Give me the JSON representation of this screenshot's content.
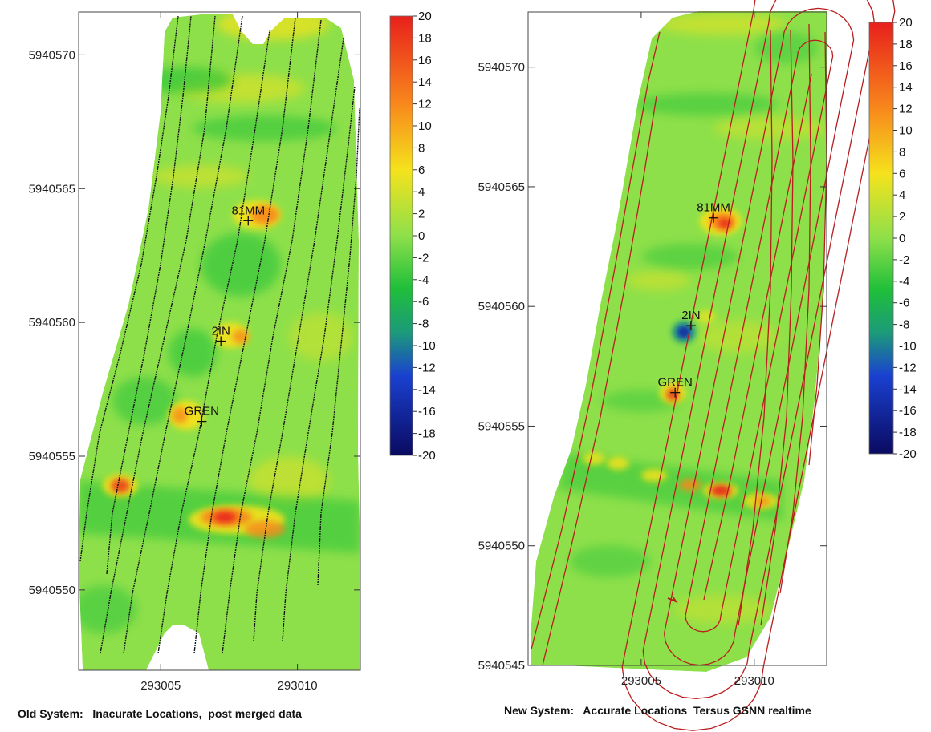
{
  "chart_data": [
    {
      "type": "heatmap",
      "caption": "Old System:   Inacurate Locations,  post merged data",
      "xlim": [
        293002,
        293012.3
      ],
      "ylim": [
        5940547,
        5940571.6
      ],
      "x_ticks": [
        293005,
        293010
      ],
      "y_ticks": [
        5940550,
        5940555,
        5940560,
        5940565,
        5940570
      ],
      "x_tick_labels": [
        "293005",
        "293010"
      ],
      "y_tick_labels": [
        "5940550",
        "5940555",
        "5940560",
        "5940565",
        "5940570"
      ],
      "colorbar": {
        "min": -20,
        "max": 20,
        "ticks": [
          20,
          18,
          16,
          14,
          12,
          10,
          8,
          6,
          4,
          2,
          0,
          -2,
          -4,
          -6,
          -8,
          -10,
          -12,
          -14,
          -16,
          -18,
          -20
        ]
      },
      "survey_lines_color": "#111111",
      "targets": [
        {
          "label": "81MM",
          "x": 293008.2,
          "y": 5940563.8
        },
        {
          "label": "2IN",
          "x": 293007.2,
          "y": 5940559.3
        },
        {
          "label": "GREN",
          "x": 293006.5,
          "y": 5940556.3
        }
      ]
    },
    {
      "type": "heatmap",
      "caption": "New System:   Accurate Locations  Tersus GSNN realtime",
      "xlim": [
        293000,
        293013.2
      ],
      "ylim": [
        5940545,
        5940572.3
      ],
      "x_ticks": [
        293005,
        293010
      ],
      "y_ticks": [
        5940545,
        5940550,
        5940555,
        5940560,
        5940565,
        5940570
      ],
      "x_tick_labels": [
        "293005",
        "293010"
      ],
      "y_tick_labels": [
        "5940545",
        "5940550",
        "5940555",
        "5940560",
        "5940565",
        "5940570"
      ],
      "colorbar": {
        "min": -20,
        "max": 20,
        "ticks": [
          20,
          18,
          16,
          14,
          12,
          10,
          8,
          6,
          4,
          2,
          0,
          -2,
          -4,
          -6,
          -8,
          -10,
          -12,
          -14,
          -16,
          -18,
          -20
        ]
      },
      "survey_lines_color": "#b81e1e",
      "targets": [
        {
          "label": "81MM",
          "x": 293008.2,
          "y": 5940563.7
        },
        {
          "label": "2IN",
          "x": 293007.2,
          "y": 5940559.2
        },
        {
          "label": "GREN",
          "x": 293006.5,
          "y": 5940556.4
        }
      ]
    }
  ],
  "colors": {
    "background": "#ffffff",
    "field_base": "#8ee04a",
    "survey_old": "#111111",
    "survey_new": "#b81e1e"
  }
}
